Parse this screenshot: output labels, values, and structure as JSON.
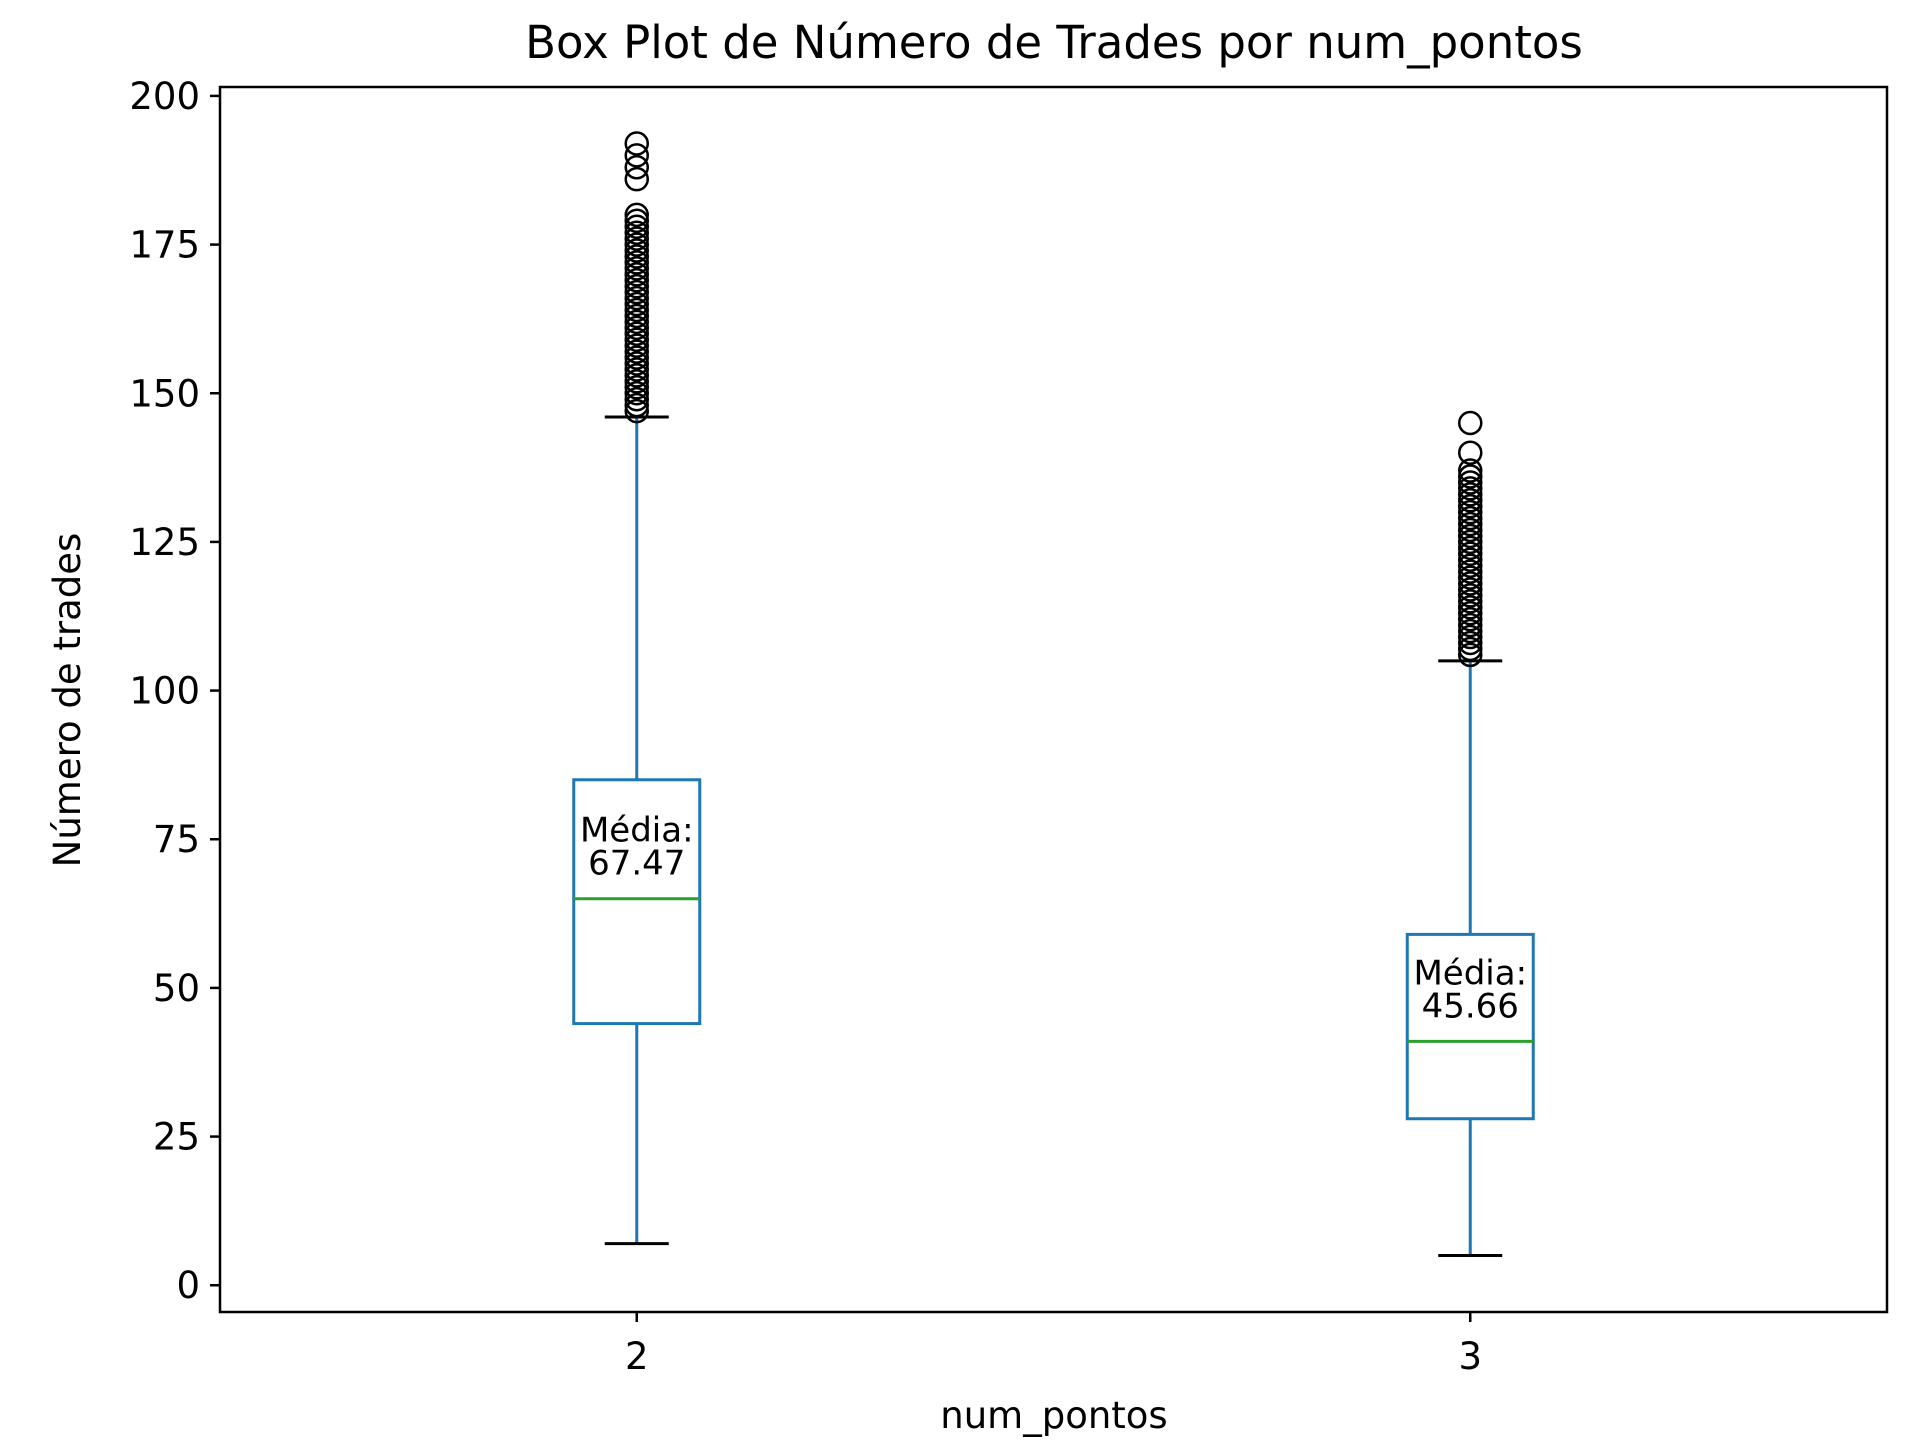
{
  "chart_data": {
    "type": "box",
    "title": "Box Plot de Número de Trades por num_pontos",
    "xlabel": "num_pontos",
    "ylabel": "Número de trades",
    "ylim": [
      -4.5,
      201.5
    ],
    "yticks": [
      0,
      25,
      50,
      75,
      100,
      125,
      150,
      175,
      200
    ],
    "categories": [
      "2",
      "3"
    ],
    "grid": false,
    "colors": {
      "box": "#1f77b4",
      "median": "#2ca02c",
      "whisker_cap": "#000000",
      "flier": "#000000"
    },
    "boxes": [
      {
        "category": "2",
        "whislo": 7,
        "q1": 44,
        "median": 65,
        "q3": 85,
        "whishi": 146,
        "mean_label_line1": "Média:",
        "mean_label_line2": "67.47",
        "fliers": [
          147,
          148,
          149,
          150,
          151,
          152,
          153,
          154,
          155,
          156,
          157,
          158,
          159,
          160,
          161,
          162,
          163,
          164,
          165,
          166,
          167,
          168,
          169,
          170,
          171,
          172,
          173,
          174,
          175,
          176,
          177,
          178,
          179,
          180,
          186,
          188,
          190,
          192
        ]
      },
      {
        "category": "3",
        "whislo": 5,
        "q1": 28,
        "median": 41,
        "q3": 59,
        "whishi": 105,
        "mean_label_line1": "Média:",
        "mean_label_line2": "45.66",
        "fliers": [
          106,
          107,
          108,
          109,
          110,
          111,
          112,
          113,
          114,
          115,
          116,
          117,
          118,
          119,
          120,
          121,
          122,
          123,
          124,
          125,
          126,
          127,
          128,
          129,
          130,
          131,
          132,
          133,
          134,
          135,
          136,
          137,
          140,
          145
        ]
      }
    ]
  }
}
